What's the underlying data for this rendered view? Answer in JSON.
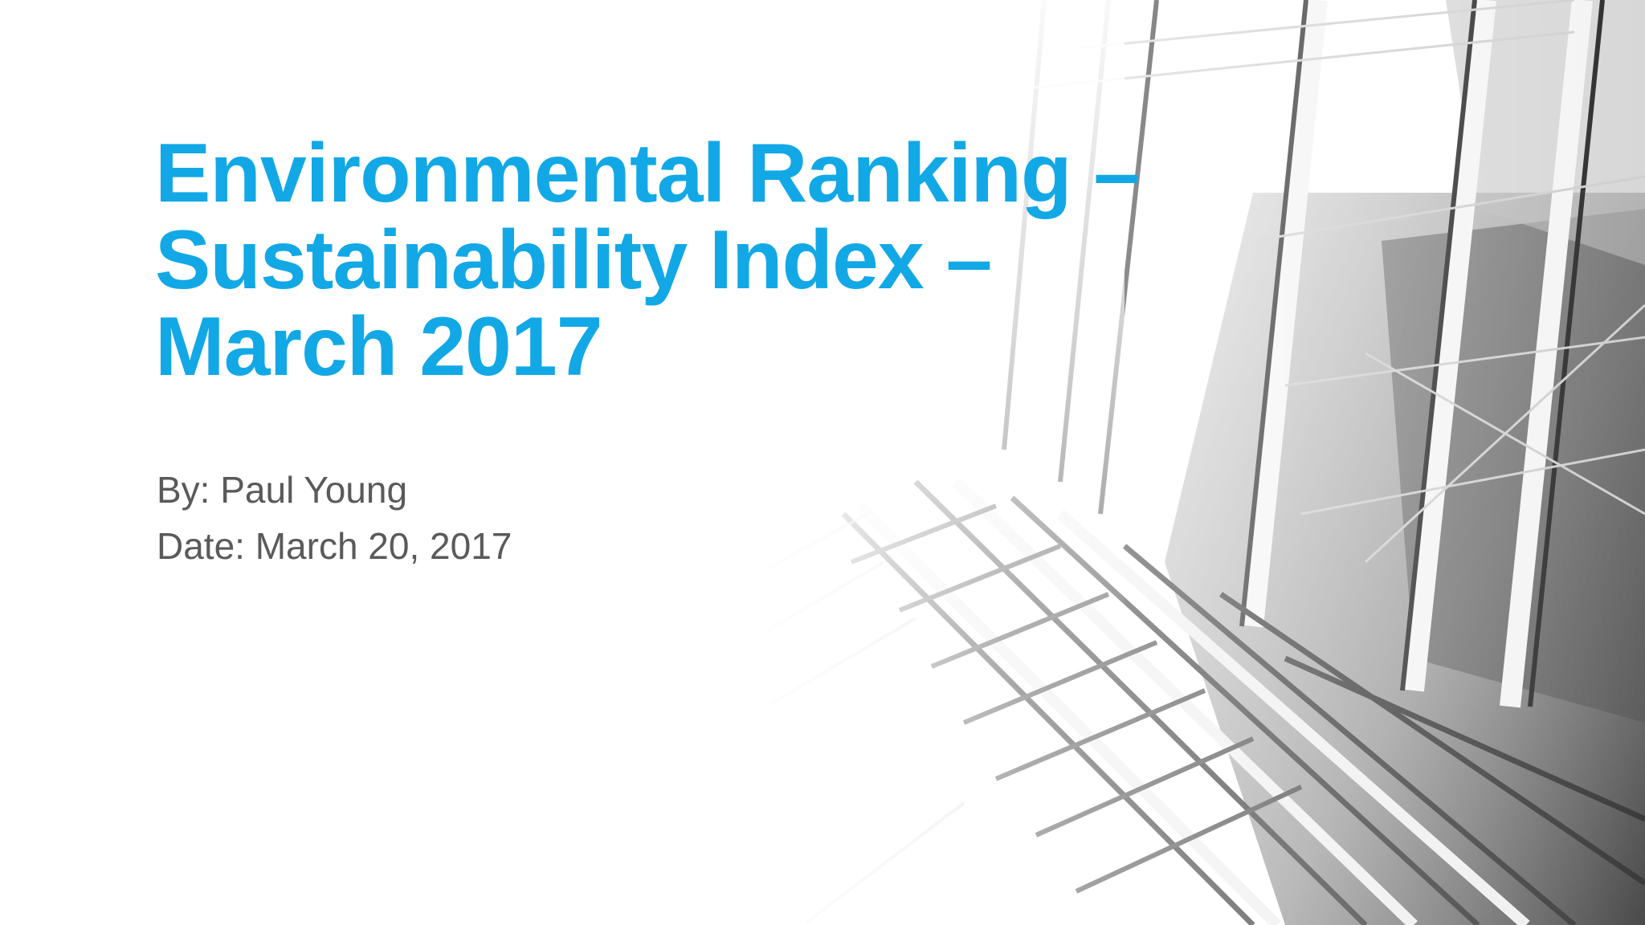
{
  "slide": {
    "title_lines": [
      "Environmental Ranking –",
      "Sustainability Index –",
      "March 2017"
    ],
    "author": "By: Paul Young",
    "date": "Date: March 20, 2017"
  },
  "colors": {
    "title": "#12a8e6",
    "subtitle": "#5a5a5a",
    "background": "#ffffff"
  }
}
